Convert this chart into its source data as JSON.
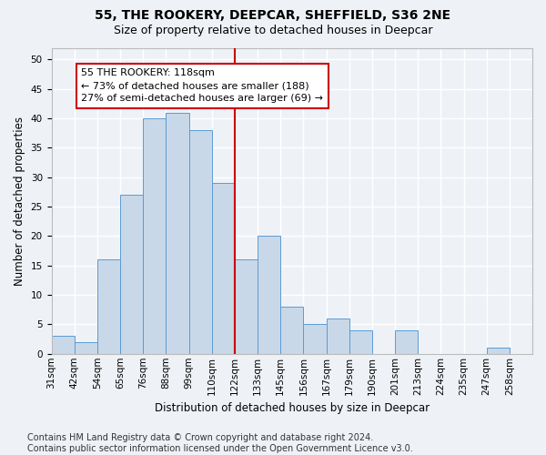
{
  "title_line1": "55, THE ROOKERY, DEEPCAR, SHEFFIELD, S36 2NE",
  "title_line2": "Size of property relative to detached houses in Deepcar",
  "xlabel": "Distribution of detached houses by size in Deepcar",
  "ylabel": "Number of detached properties",
  "bin_labels": [
    "31sqm",
    "42sqm",
    "54sqm",
    "65sqm",
    "76sqm",
    "88sqm",
    "99sqm",
    "110sqm",
    "122sqm",
    "133sqm",
    "145sqm",
    "156sqm",
    "167sqm",
    "179sqm",
    "190sqm",
    "201sqm",
    "213sqm",
    "224sqm",
    "235sqm",
    "247sqm",
    "258sqm"
  ],
  "bar_heights": [
    3,
    2,
    16,
    27,
    40,
    41,
    38,
    29,
    16,
    20,
    8,
    5,
    6,
    4,
    0,
    4,
    0,
    0,
    0,
    1,
    0
  ],
  "bar_color": "#c8d8e8",
  "bar_edgecolor": "#5b9bd5",
  "property_bin_index": 8,
  "vline_color": "#cc0000",
  "annotation_text": "55 THE ROOKERY: 118sqm\n← 73% of detached houses are smaller (188)\n27% of semi-detached houses are larger (69) →",
  "annotation_box_color": "#ffffff",
  "annotation_box_edgecolor": "#cc0000",
  "ylim": [
    0,
    52
  ],
  "yticks": [
    0,
    5,
    10,
    15,
    20,
    25,
    30,
    35,
    40,
    45,
    50
  ],
  "footer_line1": "Contains HM Land Registry data © Crown copyright and database right 2024.",
  "footer_line2": "Contains public sector information licensed under the Open Government Licence v3.0.",
  "background_color": "#eef2f7",
  "grid_color": "#ffffff",
  "title_fontsize": 10,
  "subtitle_fontsize": 9,
  "axis_label_fontsize": 8.5,
  "tick_fontsize": 7.5,
  "annotation_fontsize": 8,
  "footer_fontsize": 7
}
